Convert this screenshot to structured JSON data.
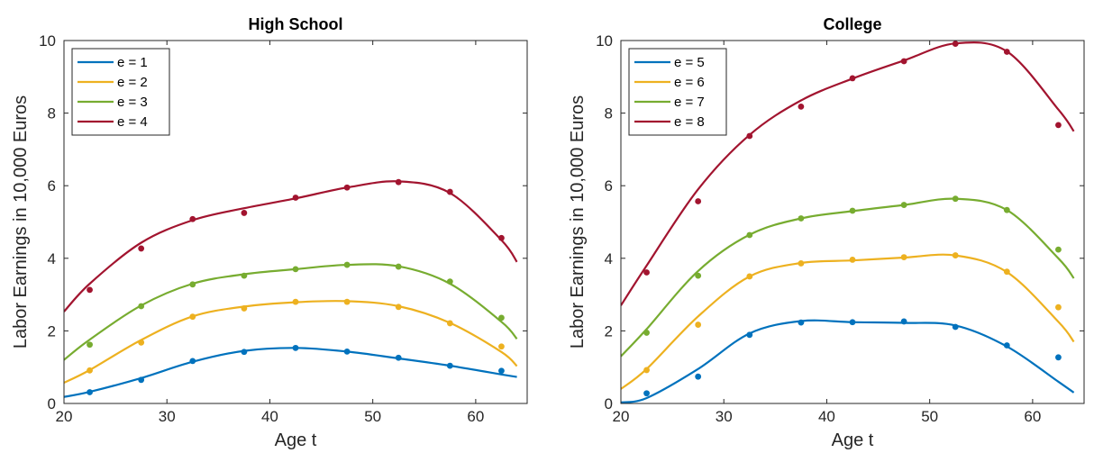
{
  "chart_data": [
    {
      "type": "line",
      "title": "High School",
      "xlabel": "Age t",
      "ylabel": "Labor Earnings in 10,000 Euros",
      "xlim": [
        20,
        65
      ],
      "ylim": [
        0,
        10
      ],
      "xticks": [
        "20",
        "30",
        "40",
        "50",
        "60"
      ],
      "yticks": [
        "0",
        "2",
        "4",
        "6",
        "8",
        "10"
      ],
      "legend_position": "top-left",
      "series": [
        {
          "name": "e = 1",
          "color": "#0072BD",
          "points_x": [
            22.5,
            27.5,
            32.5,
            37.5,
            42.5,
            47.5,
            52.5,
            57.5,
            62.5
          ],
          "points_y": [
            0.31,
            0.65,
            1.17,
            1.42,
            1.53,
            1.43,
            1.26,
            1.04,
            0.9
          ],
          "curve_x": [
            20,
            22.5,
            27.5,
            32.5,
            37.5,
            42.5,
            47.5,
            52.5,
            57.5,
            62.5,
            64
          ],
          "curve_y": [
            0.18,
            0.32,
            0.7,
            1.15,
            1.45,
            1.53,
            1.43,
            1.24,
            1.04,
            0.8,
            0.73
          ]
        },
        {
          "name": "e = 2",
          "color": "#EDB120",
          "points_x": [
            22.5,
            27.5,
            32.5,
            37.5,
            42.5,
            47.5,
            52.5,
            57.5,
            62.5
          ],
          "points_y": [
            0.91,
            1.68,
            2.39,
            2.62,
            2.8,
            2.8,
            2.66,
            2.21,
            1.57
          ],
          "curve_x": [
            20,
            22.5,
            27.5,
            32.5,
            37.5,
            42.5,
            47.5,
            52.5,
            57.5,
            62.5,
            64
          ],
          "curve_y": [
            0.57,
            0.92,
            1.75,
            2.4,
            2.67,
            2.79,
            2.82,
            2.68,
            2.22,
            1.42,
            1.03
          ]
        },
        {
          "name": "e = 3",
          "color": "#77AC30",
          "points_x": [
            22.5,
            27.5,
            32.5,
            37.5,
            42.5,
            47.5,
            52.5,
            57.5,
            62.5
          ],
          "points_y": [
            1.62,
            2.68,
            3.28,
            3.52,
            3.7,
            3.82,
            3.77,
            3.36,
            2.36
          ],
          "curve_x": [
            20,
            22.5,
            27.5,
            32.5,
            37.5,
            42.5,
            47.5,
            52.5,
            57.5,
            62.5,
            64
          ],
          "curve_y": [
            1.2,
            1.76,
            2.7,
            3.3,
            3.56,
            3.7,
            3.82,
            3.78,
            3.3,
            2.25,
            1.78
          ]
        },
        {
          "name": "e = 4",
          "color": "#A2142F",
          "points_x": [
            22.5,
            27.5,
            32.5,
            37.5,
            42.5,
            47.5,
            52.5,
            57.5,
            62.5
          ],
          "points_y": [
            3.13,
            4.27,
            5.08,
            5.25,
            5.67,
            5.95,
            6.1,
            5.83,
            4.56
          ],
          "curve_x": [
            20,
            22.5,
            27.5,
            32.5,
            37.5,
            42.5,
            47.5,
            52.5,
            57.5,
            62.5,
            64
          ],
          "curve_y": [
            2.53,
            3.3,
            4.43,
            5.05,
            5.38,
            5.65,
            5.95,
            6.12,
            5.8,
            4.5,
            3.9
          ]
        }
      ]
    },
    {
      "type": "line",
      "title": "College",
      "xlabel": "Age t",
      "ylabel": "Labor Earnings in 10,000 Euros",
      "xlim": [
        20,
        65
      ],
      "ylim": [
        0,
        10
      ],
      "xticks": [
        "20",
        "30",
        "40",
        "50",
        "60"
      ],
      "yticks": [
        "0",
        "2",
        "4",
        "6",
        "8",
        "10"
      ],
      "legend_position": "top-left",
      "series": [
        {
          "name": "e = 5",
          "color": "#0072BD",
          "points_x": [
            22.5,
            27.5,
            32.5,
            37.5,
            42.5,
            47.5,
            52.5,
            57.5,
            62.5
          ],
          "points_y": [
            0.28,
            0.74,
            1.89,
            2.23,
            2.24,
            2.26,
            2.11,
            1.6,
            1.27
          ],
          "curve_x": [
            20,
            22.5,
            27.5,
            32.5,
            37.5,
            42.5,
            47.5,
            52.5,
            57.5,
            62.5,
            64
          ],
          "curve_y": [
            0.03,
            0.15,
            0.95,
            1.93,
            2.27,
            2.24,
            2.22,
            2.15,
            1.57,
            0.6,
            0.3
          ]
        },
        {
          "name": "e = 6",
          "color": "#EDB120",
          "points_x": [
            22.5,
            27.5,
            32.5,
            37.5,
            42.5,
            47.5,
            52.5,
            57.5,
            62.5
          ],
          "points_y": [
            0.92,
            2.17,
            3.5,
            3.86,
            3.96,
            4.03,
            4.08,
            3.63,
            2.65
          ],
          "curve_x": [
            20,
            22.5,
            27.5,
            32.5,
            37.5,
            42.5,
            47.5,
            52.5,
            57.5,
            62.5,
            64
          ],
          "curve_y": [
            0.4,
            0.95,
            2.4,
            3.5,
            3.87,
            3.94,
            4.02,
            4.08,
            3.62,
            2.25,
            1.7
          ]
        },
        {
          "name": "e = 7",
          "color": "#77AC30",
          "points_x": [
            22.5,
            27.5,
            32.5,
            37.5,
            42.5,
            47.5,
            52.5,
            57.5,
            62.5
          ],
          "points_y": [
            1.95,
            3.52,
            4.64,
            5.1,
            5.31,
            5.47,
            5.64,
            5.33,
            4.24
          ],
          "curve_x": [
            20,
            22.5,
            27.5,
            32.5,
            37.5,
            42.5,
            47.5,
            52.5,
            57.5,
            62.5,
            64
          ],
          "curve_y": [
            1.3,
            2.05,
            3.65,
            4.65,
            5.1,
            5.3,
            5.47,
            5.64,
            5.33,
            4.0,
            3.45
          ]
        },
        {
          "name": "e = 8",
          "color": "#A2142F",
          "points_x": [
            22.5,
            27.5,
            32.5,
            37.5,
            42.5,
            47.5,
            52.5,
            57.5,
            62.5
          ],
          "points_y": [
            3.61,
            5.57,
            7.37,
            8.18,
            8.96,
            9.43,
            9.91,
            9.69,
            7.67
          ],
          "curve_x": [
            20,
            22.5,
            27.5,
            32.5,
            37.5,
            42.5,
            47.5,
            52.5,
            57.5,
            62.5,
            64
          ],
          "curve_y": [
            2.7,
            3.8,
            5.9,
            7.4,
            8.35,
            8.95,
            9.45,
            9.92,
            9.7,
            8.1,
            7.5
          ]
        }
      ]
    }
  ]
}
